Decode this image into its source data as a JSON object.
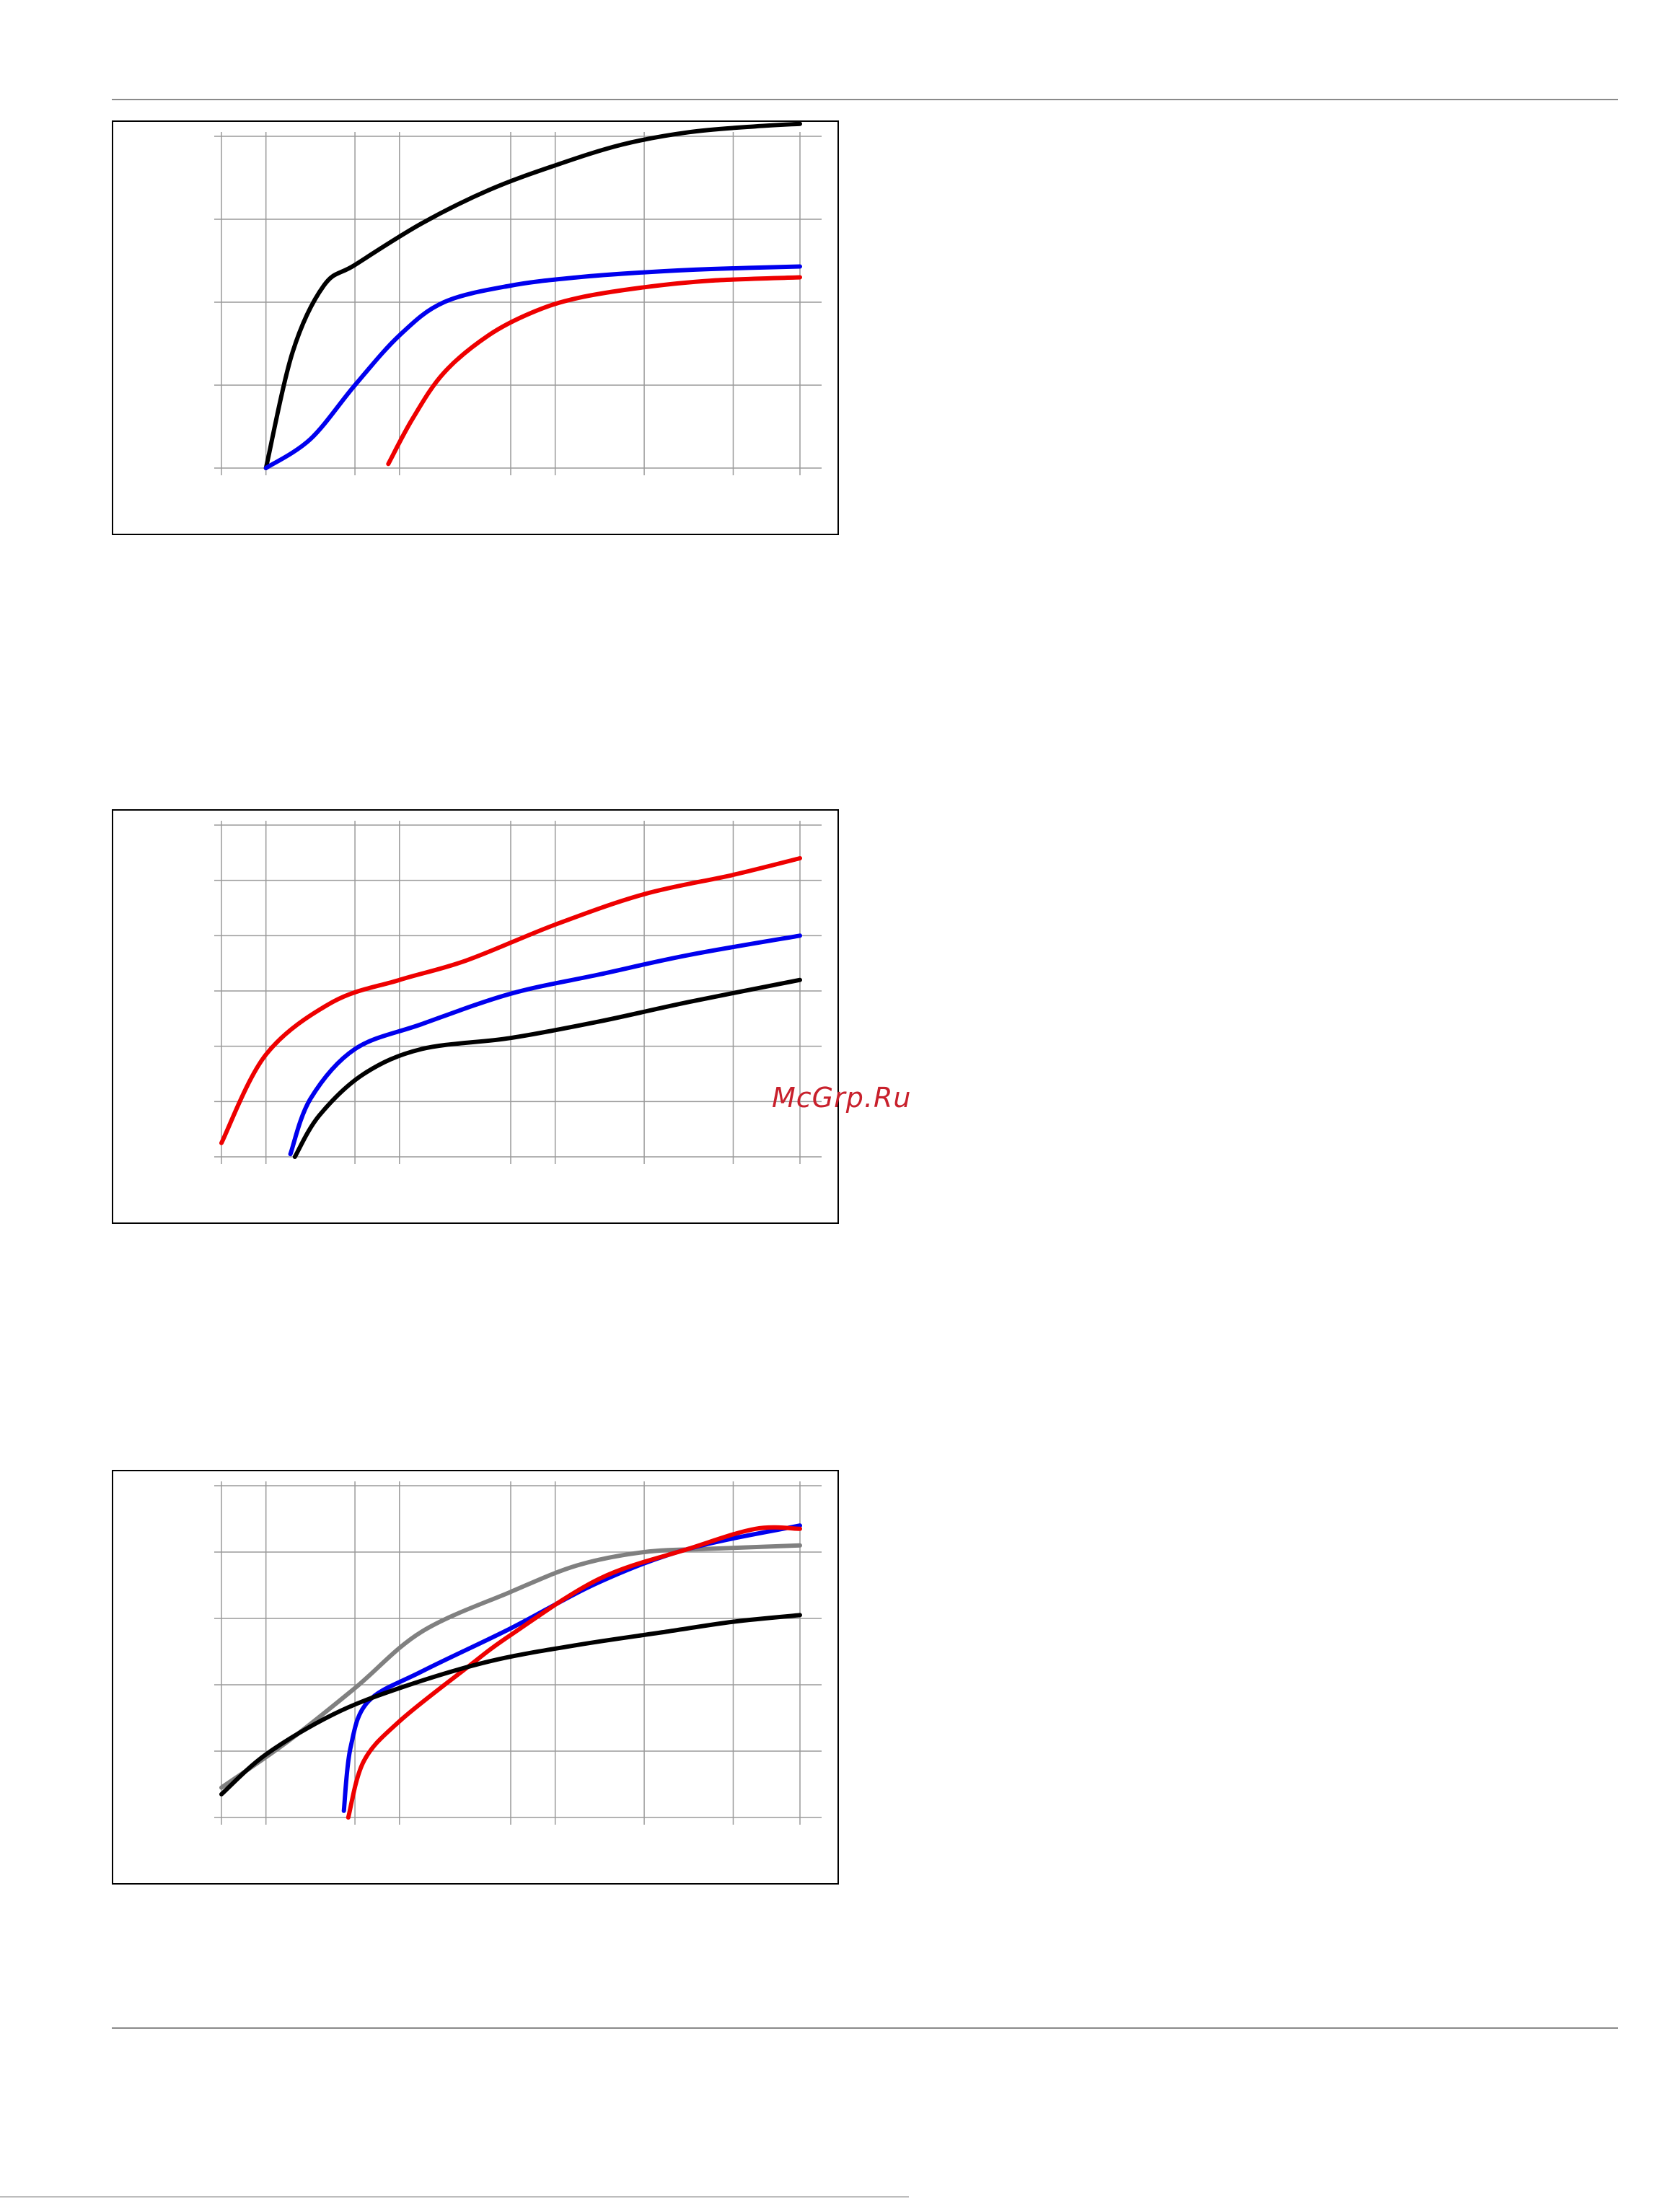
{
  "watermark": {
    "text": "McGrp.Ru",
    "color": "#c8202c"
  },
  "chart_data": [
    {
      "type": "line",
      "title": "",
      "xlabel": "",
      "ylabel": "",
      "grid": true,
      "xlim": [
        0,
        13
      ],
      "ylim": [
        0,
        4
      ],
      "x_gridlines": [
        0,
        1,
        3,
        4,
        6.5,
        7.5,
        9.5,
        11.5,
        13
      ],
      "y_gridlines": [
        0,
        1,
        2,
        3,
        4
      ],
      "series": [
        {
          "color": "#000000",
          "points": [
            [
              1,
              0
            ],
            [
              1.6,
              1.4
            ],
            [
              2.3,
              2.2
            ],
            [
              3,
              2.45
            ],
            [
              4.5,
              2.95
            ],
            [
              6,
              3.35
            ],
            [
              7.5,
              3.65
            ],
            [
              9,
              3.9
            ],
            [
              10.5,
              4.05
            ],
            [
              12,
              4.12
            ],
            [
              13,
              4.15
            ]
          ]
        },
        {
          "color": "#0000ee",
          "points": [
            [
              1,
              0
            ],
            [
              2,
              0.35
            ],
            [
              3,
              1.0
            ],
            [
              4,
              1.6
            ],
            [
              5,
              2.0
            ],
            [
              6.5,
              2.2
            ],
            [
              8,
              2.3
            ],
            [
              9.5,
              2.36
            ],
            [
              11,
              2.4
            ],
            [
              13,
              2.43
            ]
          ]
        },
        {
          "color": "#ee0000",
          "points": [
            [
              3.75,
              0.05
            ],
            [
              4.3,
              0.6
            ],
            [
              5,
              1.15
            ],
            [
              6,
              1.6
            ],
            [
              7,
              1.88
            ],
            [
              8,
              2.05
            ],
            [
              9.5,
              2.18
            ],
            [
              11,
              2.26
            ],
            [
              13,
              2.3
            ]
          ]
        }
      ]
    },
    {
      "type": "line",
      "title": "",
      "xlabel": "",
      "ylabel": "",
      "grid": true,
      "xlim": [
        0,
        13
      ],
      "ylim": [
        0,
        6
      ],
      "x_gridlines": [
        0,
        1,
        3,
        4,
        6.5,
        7.5,
        9.5,
        11.5,
        13
      ],
      "y_gridlines": [
        0,
        1,
        2,
        3,
        4,
        5,
        6
      ],
      "series": [
        {
          "color": "#ee0000",
          "points": [
            [
              0,
              0.25
            ],
            [
              1,
              1.85
            ],
            [
              2.5,
              2.8
            ],
            [
              4,
              3.2
            ],
            [
              5.5,
              3.55
            ],
            [
              7.5,
              4.2
            ],
            [
              9.5,
              4.75
            ],
            [
              11.5,
              5.1
            ],
            [
              13,
              5.4
            ]
          ]
        },
        {
          "color": "#0000ee",
          "points": [
            [
              1.55,
              0.05
            ],
            [
              2,
              1.05
            ],
            [
              3,
              1.95
            ],
            [
              4.5,
              2.4
            ],
            [
              6.5,
              2.95
            ],
            [
              8.5,
              3.3
            ],
            [
              10.5,
              3.65
            ],
            [
              13,
              4.0
            ]
          ]
        },
        {
          "color": "#000000",
          "points": [
            [
              1.65,
              0.0
            ],
            [
              2.2,
              0.75
            ],
            [
              3.2,
              1.5
            ],
            [
              4.5,
              1.95
            ],
            [
              6.5,
              2.15
            ],
            [
              8.5,
              2.45
            ],
            [
              10.5,
              2.8
            ],
            [
              13,
              3.2
            ]
          ]
        }
      ]
    },
    {
      "type": "line",
      "title": "",
      "xlabel": "",
      "ylabel": "",
      "grid": true,
      "xlim": [
        0,
        13
      ],
      "ylim": [
        0,
        5
      ],
      "x_gridlines": [
        0,
        1,
        3,
        4,
        6.5,
        7.5,
        9.5,
        11.5,
        13
      ],
      "y_gridlines": [
        0,
        1,
        2,
        3,
        4,
        5
      ],
      "series": [
        {
          "color": "#808080",
          "points": [
            [
              0,
              0.45
            ],
            [
              1.5,
              1.15
            ],
            [
              3,
              1.95
            ],
            [
              4.5,
              2.8
            ],
            [
              6.5,
              3.4
            ],
            [
              8,
              3.8
            ],
            [
              9.5,
              4.0
            ],
            [
              11,
              4.05
            ],
            [
              13,
              4.1
            ]
          ]
        },
        {
          "color": "#0000ee",
          "points": [
            [
              2.75,
              0.1
            ],
            [
              2.9,
              1.05
            ],
            [
              3.3,
              1.75
            ],
            [
              4.5,
              2.2
            ],
            [
              6.5,
              2.85
            ],
            [
              8.5,
              3.55
            ],
            [
              10.5,
              4.05
            ],
            [
              13,
              4.4
            ]
          ]
        },
        {
          "color": "#ee0000",
          "points": [
            [
              2.85,
              0.0
            ],
            [
              3.2,
              0.85
            ],
            [
              4,
              1.45
            ],
            [
              5.5,
              2.25
            ],
            [
              6.5,
              2.75
            ],
            [
              8.5,
              3.6
            ],
            [
              10.5,
              4.05
            ],
            [
              12,
              4.35
            ],
            [
              13,
              4.35
            ]
          ]
        },
        {
          "color": "#000000",
          "points": [
            [
              0,
              0.35
            ],
            [
              1,
              0.95
            ],
            [
              2.5,
              1.55
            ],
            [
              4,
              1.95
            ],
            [
              6,
              2.35
            ],
            [
              8,
              2.6
            ],
            [
              10,
              2.8
            ],
            [
              11.5,
              2.95
            ],
            [
              13,
              3.05
            ]
          ]
        }
      ]
    }
  ]
}
